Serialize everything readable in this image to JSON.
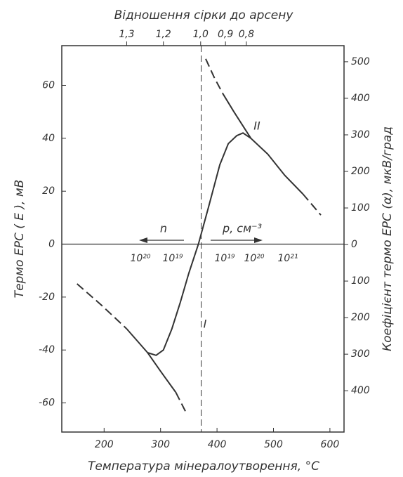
{
  "chart_data": {
    "type": "line",
    "x2label": "Відношення сірки до арсену",
    "xlabel": "Температура мінералоутворення, °C",
    "ylabel": "Термо  ЕРС ( Е ), мВ",
    "y2label": "Коефіцієнт  термо  ЕРС (α), мкВ/град",
    "xlim": [
      125,
      625
    ],
    "xticks": [
      200,
      300,
      400,
      500,
      600
    ],
    "x2ticks": [
      {
        "value": 240,
        "label": "1,3"
      },
      {
        "value": 305,
        "label": "1,2"
      },
      {
        "value": 371,
        "label": "1,0"
      },
      {
        "value": 415,
        "label": "0,9"
      },
      {
        "value": 452,
        "label": "0,8"
      }
    ],
    "ylim": [
      -71,
      75
    ],
    "yticks": [
      -60,
      -40,
      -20,
      0,
      20,
      40,
      60
    ],
    "y2lim": [
      -513,
      544
    ],
    "y2ticks": [
      500,
      400,
      300,
      200,
      100,
      0,
      {
        "value": -100,
        "label": "100"
      },
      {
        "value": -200,
        "label": "200"
      },
      {
        "value": -300,
        "label": "300"
      },
      {
        "value": -400,
        "label": "400"
      }
    ],
    "vline": 372,
    "series": [
      {
        "name": "I",
        "color": "#333333",
        "dash": false,
        "x": [
          277,
          292,
          305,
          320,
          335,
          350,
          367,
          385,
          405,
          420,
          435,
          446,
          460
        ],
        "values": [
          -41,
          -42,
          -40,
          -32,
          -22,
          -11,
          0,
          14,
          30,
          38,
          41,
          42,
          40
        ]
      },
      {
        "color": "#333333",
        "dash": true,
        "x": [
          152,
          195,
          240
        ],
        "values": [
          -15,
          -23,
          -32
        ]
      },
      {
        "color": "#333333",
        "dash": false,
        "x": [
          240,
          277
        ],
        "values": [
          -32,
          -41
        ]
      },
      {
        "color": "#333333",
        "dash": false,
        "x": [
          277,
          300,
          327
        ],
        "values": [
          -41,
          -48,
          -56
        ]
      },
      {
        "color": "#333333",
        "dash": true,
        "x": [
          327,
          346
        ],
        "values": [
          -56,
          -64
        ]
      },
      {
        "color": "#333333",
        "dash": true,
        "x": [
          380,
          395,
          410
        ],
        "values": [
          70,
          63,
          57
        ]
      },
      {
        "name": "II",
        "color": "#333333",
        "dash": false,
        "x": [
          410,
          430,
          460,
          490,
          520,
          552
        ],
        "values": [
          57,
          50,
          40,
          34,
          26,
          19
        ]
      },
      {
        "color": "#333333",
        "dash": true,
        "x": [
          552,
          584
        ],
        "values": [
          19,
          11
        ]
      }
    ],
    "annotations": {
      "n": "n",
      "p": "p, см⁻³",
      "conc": [
        "10²⁰",
        "10¹⁹",
        "10¹⁹",
        "10²⁰",
        "10²¹"
      ]
    }
  }
}
